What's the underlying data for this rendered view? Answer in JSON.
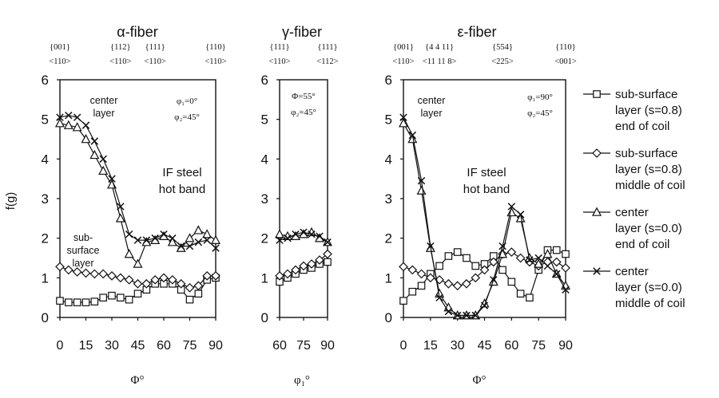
{
  "chart_data": [
    {
      "type": "line",
      "title": "α-fiber",
      "xlabel": "Φ°",
      "ylabel": "f(g)",
      "xlim": [
        0,
        90
      ],
      "ylim": [
        0,
        6
      ],
      "xticks": [
        0,
        15,
        30,
        45,
        60,
        75,
        90
      ],
      "yticks": [
        0,
        1,
        2,
        3,
        4,
        5,
        6
      ],
      "top_labels": [
        {
          "x": 0,
          "plane": "{001}",
          "dir": "<110>"
        },
        {
          "x": 35,
          "plane": "{112}",
          "dir": "<110>"
        },
        {
          "x": 55,
          "plane": "{111}",
          "dir": "<110>"
        },
        {
          "x": 90,
          "plane": "{110}",
          "dir": "<110>"
        }
      ],
      "annotations": [
        "center",
        "layer",
        "φ₁=0°",
        "φ₂=45°",
        "IF steel",
        "hot band",
        "sub-",
        "surface",
        "layer"
      ],
      "series": [
        {
          "name": "sub-surface layer (s=0.8) end of coil",
          "marker": "square",
          "x": [
            0,
            5,
            10,
            15,
            20,
            25,
            30,
            35,
            40,
            45,
            50,
            55,
            60,
            65,
            70,
            75,
            80,
            85,
            90
          ],
          "y": [
            0.42,
            0.38,
            0.38,
            0.38,
            0.4,
            0.5,
            0.55,
            0.5,
            0.45,
            0.6,
            0.7,
            0.85,
            0.85,
            0.85,
            0.7,
            0.45,
            0.6,
            0.95,
            1.0
          ]
        },
        {
          "name": "sub-surface layer (s=0.8) middle of coil",
          "marker": "diamond",
          "x": [
            0,
            5,
            10,
            15,
            20,
            25,
            30,
            35,
            40,
            45,
            50,
            55,
            60,
            65,
            70,
            75,
            80,
            85,
            90
          ],
          "y": [
            1.28,
            1.2,
            1.15,
            1.12,
            1.1,
            1.1,
            1.05,
            1.0,
            0.95,
            0.85,
            0.85,
            0.95,
            1.0,
            0.95,
            0.85,
            0.75,
            0.8,
            1.05,
            1.05
          ]
        },
        {
          "name": "center layer (s=0.0) end of coil",
          "marker": "triangle",
          "x": [
            0,
            5,
            10,
            15,
            20,
            25,
            30,
            35,
            40,
            45,
            50,
            55,
            60,
            65,
            70,
            75,
            80,
            85,
            90
          ],
          "y": [
            4.9,
            4.85,
            4.8,
            4.5,
            4.1,
            3.7,
            3.35,
            2.5,
            1.6,
            1.35,
            1.9,
            1.95,
            2.05,
            1.9,
            1.75,
            2.0,
            2.2,
            2.1,
            1.95
          ]
        },
        {
          "name": "center layer (s=0.0) middle of coil",
          "marker": "cross",
          "x": [
            0,
            5,
            10,
            15,
            20,
            25,
            30,
            35,
            40,
            45,
            50,
            55,
            60,
            65,
            70,
            75,
            80,
            85,
            90
          ],
          "y": [
            5.05,
            5.1,
            5.05,
            4.85,
            4.45,
            4.0,
            3.5,
            2.8,
            2.1,
            1.95,
            1.95,
            2.0,
            2.1,
            2.0,
            1.8,
            1.8,
            1.9,
            1.95,
            1.75
          ]
        }
      ]
    },
    {
      "type": "line",
      "title": "γ-fiber",
      "xlabel": "φ₁°",
      "ylabel": "",
      "xlim": [
        60,
        90
      ],
      "ylim": [
        0,
        6
      ],
      "xticks": [
        60,
        75,
        90
      ],
      "yticks": [
        0,
        1,
        2,
        3,
        4,
        5,
        6
      ],
      "top_labels": [
        {
          "x": 60,
          "plane": "{111}",
          "dir": "<110>"
        },
        {
          "x": 90,
          "plane": "{111}",
          "dir": "<112>"
        }
      ],
      "annotations": [
        "Φ=55°",
        "φ₂=45°"
      ],
      "series": [
        {
          "name": "sub-surface layer (s=0.8) end of coil",
          "marker": "square",
          "x": [
            60,
            65,
            70,
            75,
            80,
            85,
            90
          ],
          "y": [
            0.9,
            1.0,
            1.1,
            1.2,
            1.25,
            1.35,
            1.4
          ]
        },
        {
          "name": "sub-surface layer (s=0.8) middle of coil",
          "marker": "diamond",
          "x": [
            60,
            65,
            70,
            75,
            80,
            85,
            90
          ],
          "y": [
            1.05,
            1.1,
            1.2,
            1.3,
            1.35,
            1.45,
            1.6
          ]
        },
        {
          "name": "center layer (s=0.0) end of coil",
          "marker": "triangle",
          "x": [
            60,
            65,
            70,
            75,
            80,
            85,
            90
          ],
          "y": [
            2.1,
            2.05,
            2.05,
            2.1,
            2.15,
            2.0,
            1.9
          ]
        },
        {
          "name": "center layer (s=0.0) middle of coil",
          "marker": "cross",
          "x": [
            60,
            65,
            70,
            75,
            80,
            85,
            90
          ],
          "y": [
            1.95,
            2.0,
            2.1,
            2.15,
            2.1,
            2.05,
            1.9
          ]
        }
      ]
    },
    {
      "type": "line",
      "title": "ε-fiber",
      "xlabel": "Φ°",
      "ylabel": "",
      "xlim": [
        0,
        90
      ],
      "ylim": [
        0,
        6
      ],
      "xticks": [
        0,
        15,
        30,
        45,
        60,
        75,
        90
      ],
      "yticks": [
        0,
        1,
        2,
        3,
        4,
        5,
        6
      ],
      "top_labels": [
        {
          "x": 0,
          "plane": "{001}",
          "dir": "<110>"
        },
        {
          "x": 20,
          "plane": "{4 4 11}",
          "dir": "<11 11 8>"
        },
        {
          "x": 55,
          "plane": "{554}",
          "dir": "<225>"
        },
        {
          "x": 90,
          "plane": "{110}",
          "dir": "<001>"
        }
      ],
      "annotations": [
        "center",
        "layer",
        "φ₁=90°",
        "φ₂=45°",
        "IF steel",
        "hot band"
      ],
      "series": [
        {
          "name": "sub-surface layer (s=0.8) end of coil",
          "marker": "square",
          "x": [
            0,
            5,
            10,
            15,
            20,
            25,
            30,
            35,
            40,
            45,
            50,
            55,
            60,
            65,
            70,
            75,
            80,
            85,
            90
          ],
          "y": [
            0.42,
            0.65,
            0.8,
            1.1,
            1.3,
            1.55,
            1.65,
            1.5,
            1.3,
            1.35,
            1.55,
            1.2,
            0.9,
            0.6,
            0.5,
            1.2,
            1.7,
            1.7,
            1.6
          ]
        },
        {
          "name": "sub-surface layer (s=0.8) middle of coil",
          "marker": "diamond",
          "x": [
            0,
            5,
            10,
            15,
            20,
            25,
            30,
            35,
            40,
            45,
            50,
            55,
            60,
            65,
            70,
            75,
            80,
            85,
            90
          ],
          "y": [
            1.28,
            1.2,
            1.1,
            1.0,
            0.95,
            0.85,
            0.8,
            0.85,
            1.0,
            1.2,
            1.4,
            1.6,
            1.65,
            1.5,
            1.4,
            1.3,
            1.4,
            1.4,
            1.25
          ]
        },
        {
          "name": "center layer (s=0.0) end of coil",
          "marker": "triangle",
          "x": [
            0,
            5,
            10,
            15,
            20,
            25,
            30,
            35,
            40,
            45,
            50,
            55,
            60,
            65,
            70,
            75,
            80,
            85,
            90
          ],
          "y": [
            4.9,
            4.5,
            3.2,
            1.75,
            0.6,
            0.25,
            0.05,
            0.05,
            0.05,
            0.35,
            0.9,
            1.6,
            2.65,
            2.5,
            1.5,
            1.35,
            1.6,
            1.1,
            0.8
          ]
        },
        {
          "name": "center layer (s=0.0) middle of coil",
          "marker": "cross",
          "x": [
            0,
            5,
            10,
            15,
            20,
            25,
            30,
            35,
            40,
            45,
            50,
            55,
            60,
            65,
            70,
            75,
            80,
            85,
            90
          ],
          "y": [
            5.05,
            4.6,
            3.45,
            1.8,
            0.5,
            0.15,
            0.05,
            0.05,
            0.05,
            0.3,
            0.95,
            1.8,
            2.8,
            2.6,
            1.45,
            1.5,
            1.3,
            1.1,
            0.7
          ]
        }
      ]
    }
  ],
  "legend": [
    {
      "marker": "square",
      "lines": [
        "sub-surface",
        "layer (s=0.8)",
        "end of coil"
      ]
    },
    {
      "marker": "diamond",
      "lines": [
        "sub-surface",
        "layer (s=0.8)",
        "middle of coil"
      ]
    },
    {
      "marker": "triangle",
      "lines": [
        "center",
        "layer (s=0.0)",
        "end of coil"
      ]
    },
    {
      "marker": "cross",
      "lines": [
        "center",
        "layer (s=0.0)",
        "middle of coil"
      ]
    }
  ]
}
